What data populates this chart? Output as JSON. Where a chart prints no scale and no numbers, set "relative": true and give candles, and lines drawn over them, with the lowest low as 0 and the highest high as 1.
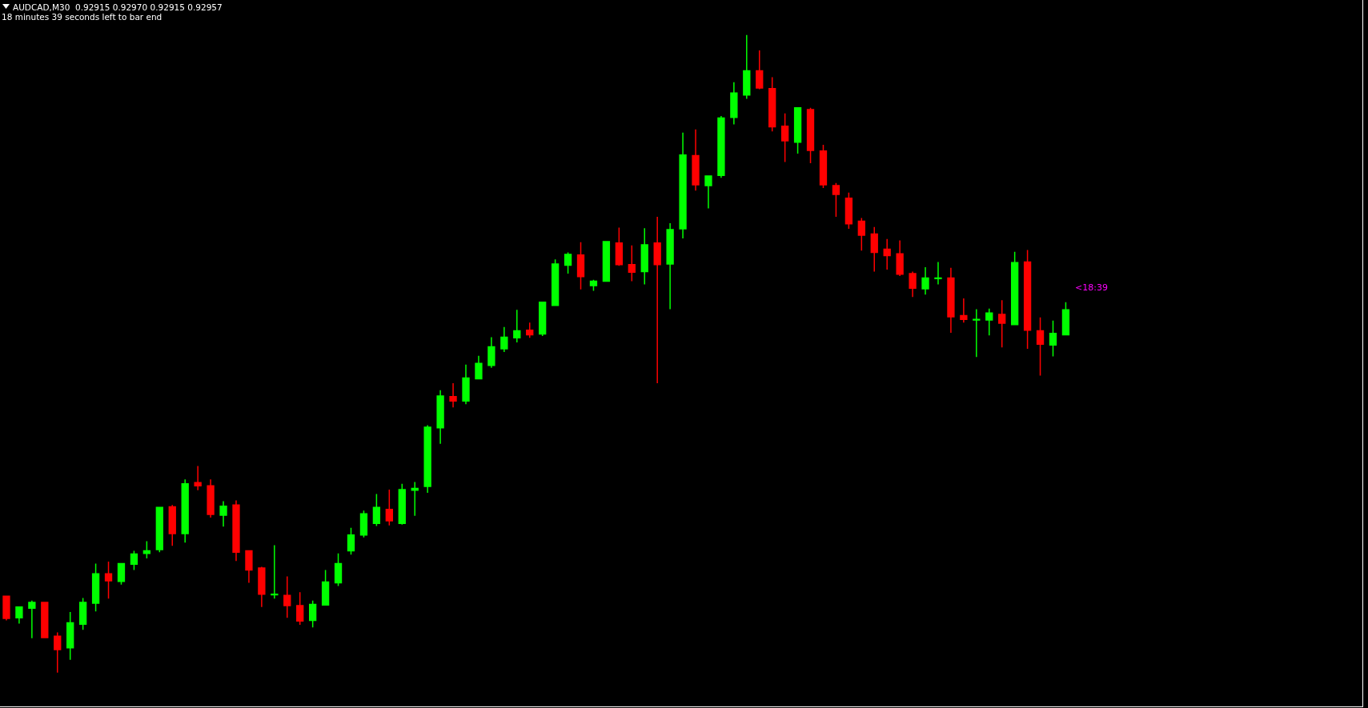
{
  "chart_data": {
    "type": "candlestick",
    "title": "AUDCAD,M30  0.92915 0.92970 0.92915 0.92957",
    "subtitle": "18 minutes 39 seconds left to bar end",
    "annotations": [
      "<18:39"
    ],
    "relative": true,
    "colors": [
      "#ff0000",
      "#00ff00",
      "#00ff00",
      "#ff0000",
      "#ff0000",
      "#00ff00",
      "#00ff00",
      "#00ff00",
      "#ff0000",
      "#00ff00",
      "#00ff00",
      "#00ff00",
      "#00ff00",
      "#ff0000",
      "#00ff00",
      "#ff0000",
      "#ff0000",
      "#00ff00",
      "#ff0000",
      "#ff0000",
      "#ff0000",
      "#00ff00",
      "#ff0000",
      "#ff0000",
      "#00ff00",
      "#00ff00",
      "#00ff00",
      "#00ff00",
      "#00ff00",
      "#00ff00",
      "#ff0000",
      "#00ff00",
      "#00ff00",
      "#00ff00",
      "#00ff00",
      "#ff0000",
      "#00ff00",
      "#00ff00",
      "#00ff00",
      "#00ff00",
      "#00ff00",
      "#ff0000",
      "#00ff00",
      "#00ff00",
      "#00ff00",
      "#ff0000",
      "#00ff00",
      "#00ff00",
      "#ff0000",
      "#ff0000",
      "#00ff00",
      "#ff0000",
      "#00ff00",
      "#00ff00",
      "#ff0000",
      "#00ff00",
      "#00ff00",
      "#00ff00",
      "#00ff00",
      "#ff0000",
      "#ff0000",
      "#ff0000",
      "#00ff00",
      "#ff0000",
      "#ff0000",
      "#ff0000",
      "#ff0000",
      "#ff0000",
      "#ff0000",
      "#ff0000",
      "#ff0000",
      "#ff0000",
      "#00ff00",
      "#00ff00",
      "#ff0000",
      "#ff0000",
      "#00ff00",
      "#00ff00",
      "#ff0000",
      "#00ff00",
      "#ff0000",
      "#ff0000",
      "#00ff00",
      "#00ff00"
    ],
    "categories": [
      null,
      null,
      null,
      null,
      null,
      null,
      null,
      null,
      null,
      null,
      null,
      null,
      null,
      null,
      null,
      null,
      null,
      null,
      null,
      null,
      null,
      null,
      null,
      null,
      null,
      null,
      null,
      null,
      null,
      null,
      null,
      null,
      null,
      null,
      null,
      null,
      null,
      null,
      null,
      null,
      null,
      null,
      null,
      null,
      null,
      null,
      null,
      null,
      null,
      null,
      null,
      null,
      null,
      null,
      null,
      null,
      null,
      null,
      null,
      null,
      null,
      null,
      null,
      null,
      null,
      null,
      null,
      null,
      null,
      null,
      null,
      null,
      null,
      null,
      null,
      null,
      null,
      null,
      null,
      null,
      null,
      null,
      null,
      null
    ],
    "series": [
      {
        "ohlc": [
          [
            0.12,
            0.12,
            0.082,
            0.085
          ],
          [
            0.086,
            0.103,
            0.077,
            0.103
          ],
          [
            0.101,
            0.113,
            0.054,
            0.11
          ],
          [
            0.11,
            0.11,
            0.055,
            0.055
          ],
          [
            0.057,
            0.063,
            0,
            0.036
          ],
          [
            0.039,
            0.095,
            0.02,
            0.078
          ],
          [
            0.076,
            0.117,
            0.067,
            0.11
          ],
          [
            0.109,
            0.171,
            0.096,
            0.155
          ],
          [
            0.155,
            0.174,
            0.116,
            0.144
          ],
          [
            0.143,
            0.171,
            0.138,
            0.171
          ],
          [
            0.17,
            0.191,
            0.161,
            0.186
          ],
          [
            0.187,
            0.206,
            0.179,
            0.191
          ],
          [
            0.193,
            0.26,
            0.189,
            0.259
          ],
          [
            0.26,
            0.263,
            0.199,
            0.218
          ],
          [
            0.218,
            0.303,
            0.204,
            0.296
          ],
          [
            0.298,
            0.324,
            0.286,
            0.293
          ],
          [
            0.293,
            0.303,
            0.243,
            0.248
          ],
          [
            0.247,
            0.269,
            0.229,
            0.261
          ],
          [
            0.263,
            0.27,
            0.175,
            0.189
          ],
          [
            0.191,
            0.191,
            0.141,
            0.161
          ],
          [
            0.164,
            0.166,
            0.103,
            0.123
          ],
          [
            0.122,
            0.2,
            0.116,
            0.123
          ],
          [
            0.121,
            0.151,
            0.086,
            0.105
          ],
          [
            0.105,
            0.126,
            0.075,
            0.081
          ],
          [
            0.082,
            0.113,
            0.071,
            0.107
          ],
          [
            0.106,
            0.161,
            0.105,
            0.142
          ],
          [
            0.141,
            0.187,
            0.136,
            0.171
          ],
          [
            0.191,
            0.227,
            0.185,
            0.216
          ],
          [
            0.216,
            0.254,
            0.212,
            0.249
          ],
          [
            0.234,
            0.28,
            0.23,
            0.259
          ],
          [
            0.256,
            0.287,
            0.231,
            0.238
          ],
          [
            0.234,
            0.296,
            0.232,
            0.287
          ],
          [
            0.286,
            0.299,
            0.246,
            0.289
          ],
          [
            0.292,
            0.388,
            0.282,
            0.385
          ],
          [
            0.384,
            0.443,
            0.359,
            0.434
          ],
          [
            0.433,
            0.454,
            0.416,
            0.426
          ],
          [
            0.426,
            0.483,
            0.421,
            0.462
          ],
          [
            0.461,
            0.497,
            0.461,
            0.485
          ],
          [
            0.482,
            0.526,
            0.478,
            0.511
          ],
          [
            0.508,
            0.542,
            0.503,
            0.526
          ],
          [
            0.525,
            0.569,
            0.518,
            0.536
          ],
          [
            0.537,
            0.549,
            0.525,
            0.53
          ],
          [
            0.531,
            0.582,
            0.528,
            0.581
          ],
          [
            0.576,
            0.648,
            0.575,
            0.641
          ],
          [
            0.639,
            0.659,
            0.626,
            0.656
          ],
          [
            0.655,
            0.675,
            0.601,
            0.621
          ],
          [
            0.607,
            0.616,
            0.599,
            0.614
          ],
          [
            0.614,
            0.676,
            0.613,
            0.676
          ],
          [
            0.674,
            0.698,
            0.638,
            0.64
          ],
          [
            0.64,
            0.67,
            0.614,
            0.628
          ],
          [
            0.629,
            0.697,
            0.609,
            0.671
          ],
          [
            0.674,
            0.715,
            0.454,
            0.64
          ],
          [
            0.641,
            0.705,
            0.57,
            0.695
          ],
          [
            0.696,
            0.847,
            0.681,
            0.812
          ],
          [
            0.811,
            0.852,
            0.756,
            0.765
          ],
          [
            0.764,
            0.779,
            0.728,
            0.779
          ],
          [
            0.78,
            0.873,
            0.776,
            0.87
          ],
          [
            0.871,
            0.926,
            0.86,
            0.909
          ],
          [
            0.906,
            1,
            0.9,
            0.944
          ],
          [
            0.944,
            0.976,
            0.915,
            0.917
          ],
          [
            0.916,
            0.934,
            0.849,
            0.856
          ],
          [
            0.857,
            0.877,
            0.801,
            0.834
          ],
          [
            0.832,
            0.886,
            0.814,
            0.886
          ],
          [
            0.883,
            0.886,
            0.799,
            0.819
          ],
          [
            0.818,
            0.828,
            0.76,
            0.765
          ],
          [
            0.764,
            0.768,
            0.715,
            0.75
          ],
          [
            0.744,
            0.753,
            0.696,
            0.704
          ],
          [
            0.708,
            0.713,
            0.662,
            0.686
          ],
          [
            0.688,
            0.699,
            0.629,
            0.659
          ],
          [
            0.664,
            0.68,
            0.632,
            0.654
          ],
          [
            0.657,
            0.678,
            0.622,
            0.625
          ],
          [
            0.626,
            0.629,
            0.589,
            0.603
          ],
          [
            0.602,
            0.636,
            0.593,
            0.619
          ],
          [
            0.618,
            0.644,
            0.609,
            0.619
          ],
          [
            0.619,
            0.635,
            0.533,
            0.558
          ],
          [
            0.56,
            0.587,
            0.549,
            0.554
          ],
          [
            0.553,
            0.57,
            0.495,
            0.554
          ],
          [
            0.553,
            0.571,
            0.529,
            0.564
          ],
          [
            0.562,
            0.584,
            0.51,
            0.548
          ],
          [
            0.546,
            0.66,
            0.545,
            0.643
          ],
          [
            0.644,
            0.663,
            0.508,
            0.537
          ],
          [
            0.536,
            0.557,
            0.466,
            0.515
          ],
          [
            0.514,
            0.552,
            0.496,
            0.532
          ],
          [
            0.53,
            0.581,
            0.53,
            0.569
          ]
        ]
      }
    ]
  }
}
